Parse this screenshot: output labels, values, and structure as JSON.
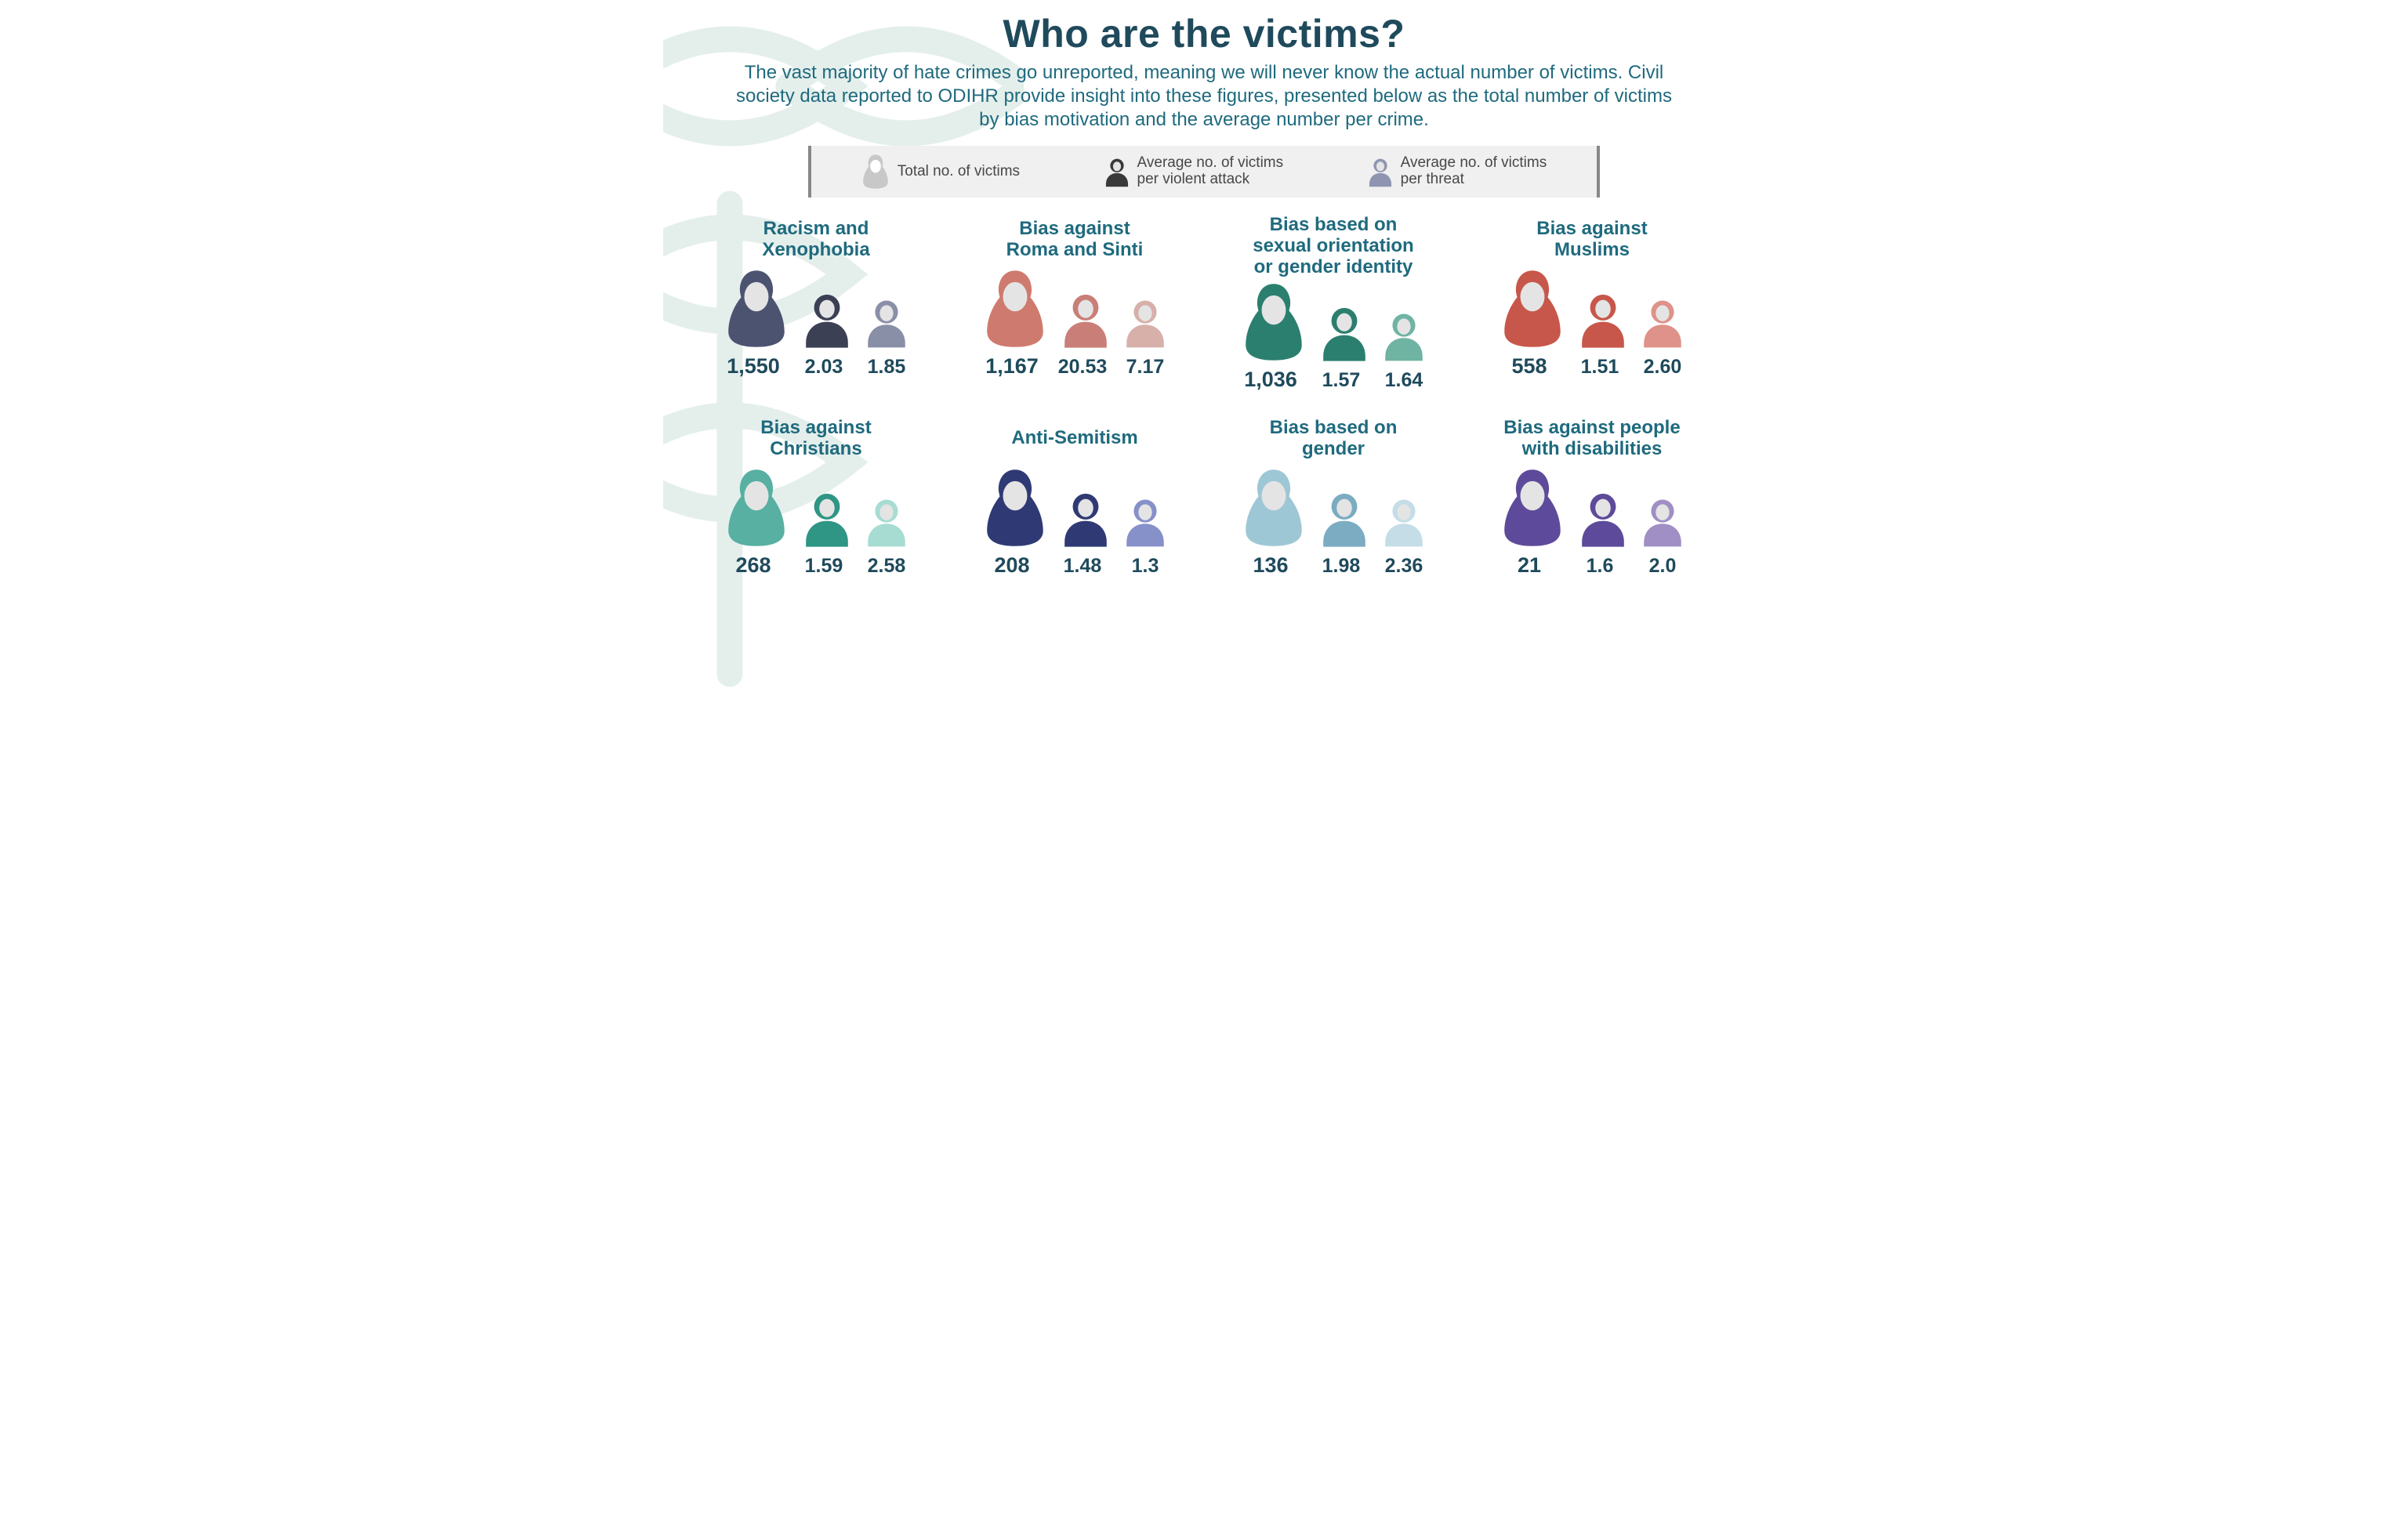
{
  "colors": {
    "title": "#1f4a5c",
    "body_text": "#1f6a7e",
    "value_text": "#1f4a5c",
    "legend_bg": "#f0f0f0",
    "legend_border": "#888888",
    "legend_text": "#474747",
    "bg_pattern": "#a8d2c8",
    "icon_face": "#e4e4e4",
    "legend_total_icon": "#c8c8c8",
    "legend_attack_icon": "#393939",
    "legend_threat_icon": "#8f95b0"
  },
  "typography": {
    "title_fontsize": 50,
    "title_weight": 900,
    "subtitle_fontsize": 24,
    "heading_fontsize": 24,
    "value_fontsize": 25,
    "legend_fontsize": 19
  },
  "title": "Who are the victims?",
  "subtitle": "The vast majority of hate crimes go unreported, meaning we will never know the actual number of victims. Civil society data reported to ODIHR provide insight into these figures, presented below as the total number of victims by bias motivation and the average number per crime.",
  "legend": [
    {
      "label": "Total no. of victims",
      "icon": "total"
    },
    {
      "label": "Average no. of victims\nper violent attack",
      "icon": "attack"
    },
    {
      "label": "Average no. of victims\nper threat",
      "icon": "threat"
    }
  ],
  "categories": [
    {
      "heading": "Racism and\nXenophobia",
      "total": "1,550",
      "avg_attack": "2.03",
      "avg_threat": "1.85",
      "total_color": "#4b5370",
      "attack_color": "#3c4055",
      "threat_color": "#8a8fa8"
    },
    {
      "heading": "Bias against\nRoma and Sinti",
      "total": "1,167",
      "avg_attack": "20.53",
      "avg_threat": "7.17",
      "total_color": "#cf7a6e",
      "attack_color": "#c97f78",
      "threat_color": "#d7b0aa"
    },
    {
      "heading": "Bias based on\nsexual orientation\nor gender identity",
      "total": "1,036",
      "avg_attack": "1.57",
      "avg_threat": "1.64",
      "total_color": "#2b7f6e",
      "attack_color": "#2b7f6e",
      "threat_color": "#6fb3a3"
    },
    {
      "heading": "Bias against\nMuslims",
      "total": "558",
      "avg_attack": "1.51",
      "avg_threat": "2.60",
      "total_color": "#c7574a",
      "attack_color": "#c7574a",
      "threat_color": "#de9289"
    },
    {
      "heading": "Bias against\nChristians",
      "total": "268",
      "avg_attack": "1.59",
      "avg_threat": "2.58",
      "total_color": "#57b0a1",
      "attack_color": "#2f9584",
      "threat_color": "#a7dcd2"
    },
    {
      "heading": "Anti-Semitism",
      "total": "208",
      "avg_attack": "1.48",
      "avg_threat": "1.3",
      "total_color": "#2f3a74",
      "attack_color": "#2f3a74",
      "threat_color": "#8690c9"
    },
    {
      "heading": "Bias based on\ngender",
      "total": "136",
      "avg_attack": "1.98",
      "avg_threat": "2.36",
      "total_color": "#9ec7d6",
      "attack_color": "#7bacc2",
      "threat_color": "#c4dde7"
    },
    {
      "heading": "Bias against people\nwith disabilities",
      "total": "21",
      "avg_attack": "1.6",
      "avg_threat": "2.0",
      "total_color": "#5e4a9a",
      "attack_color": "#5e4a9a",
      "threat_color": "#a08fc4"
    }
  ]
}
